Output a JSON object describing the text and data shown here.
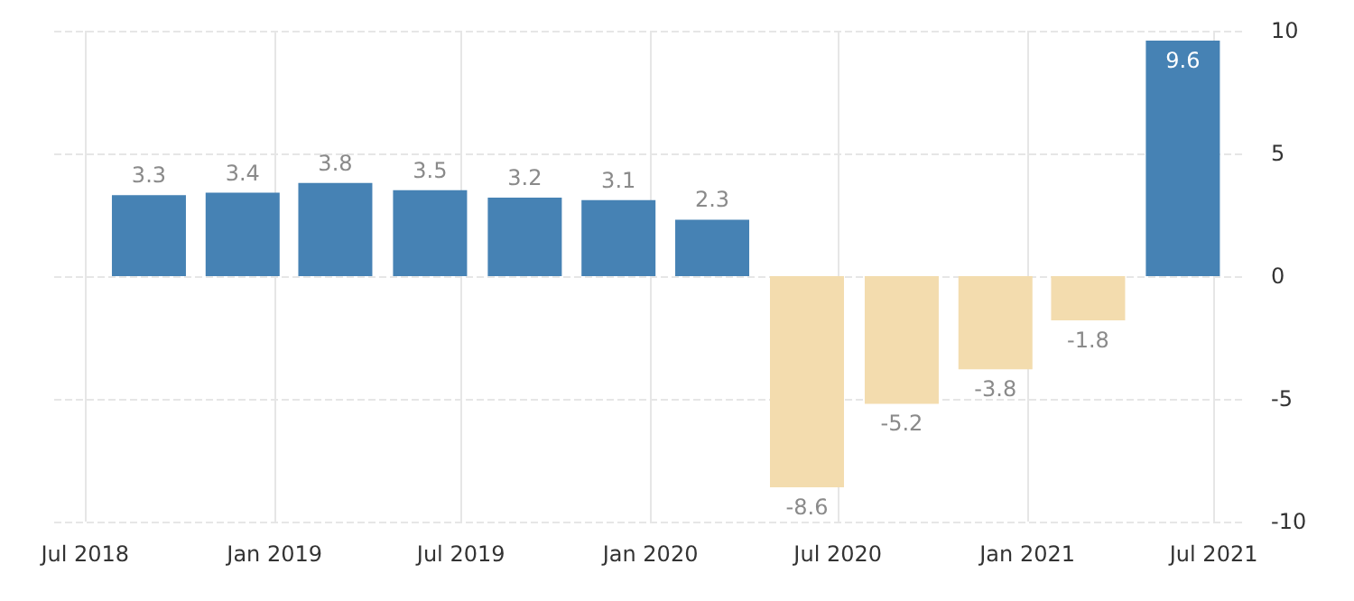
{
  "chart_data": {
    "type": "bar",
    "x": [
      "2018-09",
      "2018-12",
      "2019-03",
      "2019-06",
      "2019-09",
      "2019-12",
      "2020-03",
      "2020-06",
      "2020-09",
      "2020-12",
      "2021-03",
      "2021-06"
    ],
    "values": [
      3.3,
      3.4,
      3.8,
      3.5,
      3.2,
      3.1,
      2.3,
      -8.6,
      -5.2,
      -3.8,
      -1.8,
      9.6
    ],
    "colors": [
      "#4682b4",
      "#4682b4",
      "#4682b4",
      "#4682b4",
      "#4682b4",
      "#4682b4",
      "#4682b4",
      "#f3dcae",
      "#f3dcae",
      "#f3dcae",
      "#f3dcae",
      "#4682b4"
    ],
    "data_labels": true,
    "xlim": [
      "2018-06",
      "2021-08"
    ],
    "xticks": [
      {
        "value": "2018-07",
        "label": "Jul 2018"
      },
      {
        "value": "2019-01",
        "label": "Jan 2019"
      },
      {
        "value": "2019-07",
        "label": "Jul 2019"
      },
      {
        "value": "2020-01",
        "label": "Jan 2020"
      },
      {
        "value": "2020-07",
        "label": "Jul 2020"
      },
      {
        "value": "2021-01",
        "label": "Jan 2021"
      },
      {
        "value": "2021-07",
        "label": "Jul 2021"
      }
    ],
    "ylim": [
      -10,
      10
    ],
    "yticks": [
      -10,
      -5,
      0,
      5,
      10
    ],
    "grid": true
  }
}
